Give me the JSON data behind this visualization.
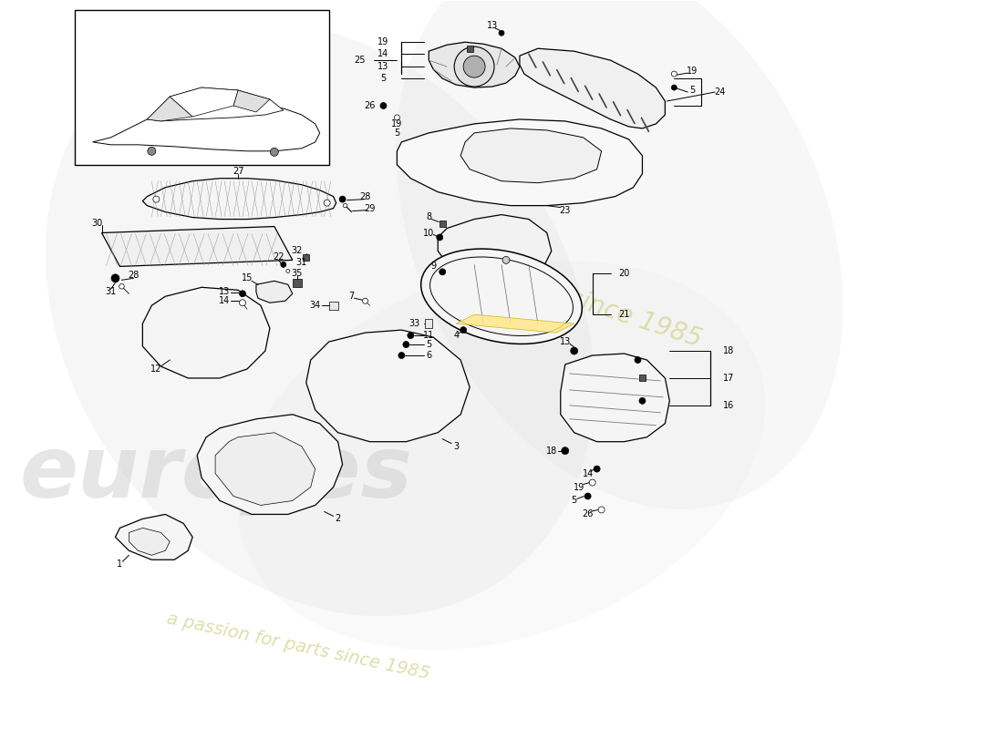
{
  "bg": "#ffffff",
  "wm1_text": "europes",
  "wm1_color": "#c8c8c8",
  "wm1_alpha": 0.45,
  "wm2_text": "a passion for parts since 1985",
  "wm2_color": "#d8d8a0",
  "wm2_alpha": 0.85,
  "wm3_text": "since 1985",
  "wm3_color": "#d8d8a0",
  "wm3_alpha": 0.85,
  "lc": "#111111",
  "lw": 0.9
}
